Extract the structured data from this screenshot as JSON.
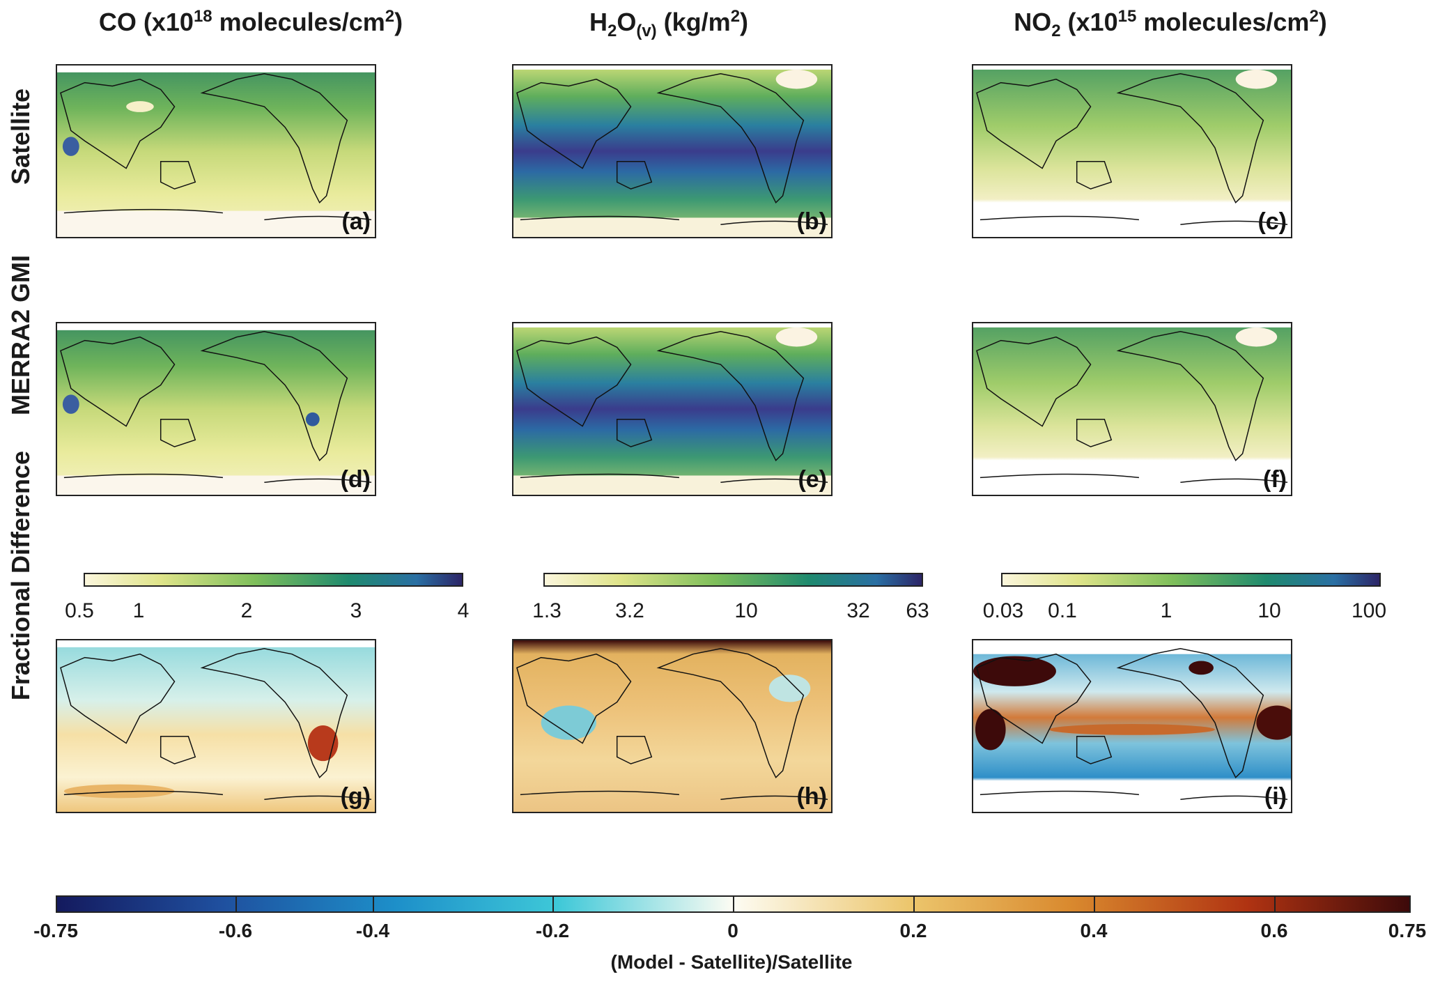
{
  "columns": [
    {
      "id": "co",
      "title_main": "CO (x10",
      "title_sup": "18",
      "title_rest": " molecules/cm",
      "title_sup2": "2",
      "title_end": ")"
    },
    {
      "id": "h2o",
      "title_main": "H",
      "title_sub": "2",
      "title_mid": "O",
      "title_sub2": "(v)",
      "title_rest": " (kg/m",
      "title_sup2": "2",
      "title_end": ")"
    },
    {
      "id": "no2",
      "title_main": "NO",
      "title_sub": "2",
      "title_rest": " (x10",
      "title_sup": "15",
      "title_rest2": " molecules/cm",
      "title_sup2": "2",
      "title_end": ")"
    }
  ],
  "rows": [
    "Satellite",
    "MERRA2 GMI",
    "Fractional Difference"
  ],
  "panels": [
    "(a)",
    "(b)",
    "(c)",
    "(d)",
    "(e)",
    "(f)",
    "(g)",
    "(h)",
    "(i)"
  ],
  "colorbars": {
    "co": {
      "ticks": [
        "0.5",
        "1",
        "2",
        "3",
        "4"
      ]
    },
    "h2o": {
      "ticks": [
        "1.3",
        "3.2",
        "10",
        "32",
        "63"
      ]
    },
    "no2": {
      "ticks": [
        "0.03",
        "0.1",
        "1",
        "10",
        "100"
      ]
    },
    "diff": {
      "ticks": [
        "-0.75",
        "-0.6",
        "-0.4",
        "-0.2",
        "0",
        "0.2",
        "0.4",
        "0.6",
        "0.75"
      ],
      "label": "(Model - Satellite)/Satellite"
    }
  },
  "colors": {
    "seq_low": "#fbf6dc",
    "seq_mid1": "#d8e27a",
    "seq_mid2": "#7fbf5b",
    "seq_mid3": "#1f8a6e",
    "seq_mid4": "#2a6fa3",
    "seq_high": "#2c2567",
    "div_low": "#1a1f6b",
    "div_negmid": "#1d9fd0",
    "div_zero": "#fdfcf3",
    "div_posmid": "#e0a238",
    "div_high": "#3d0a0a"
  }
}
